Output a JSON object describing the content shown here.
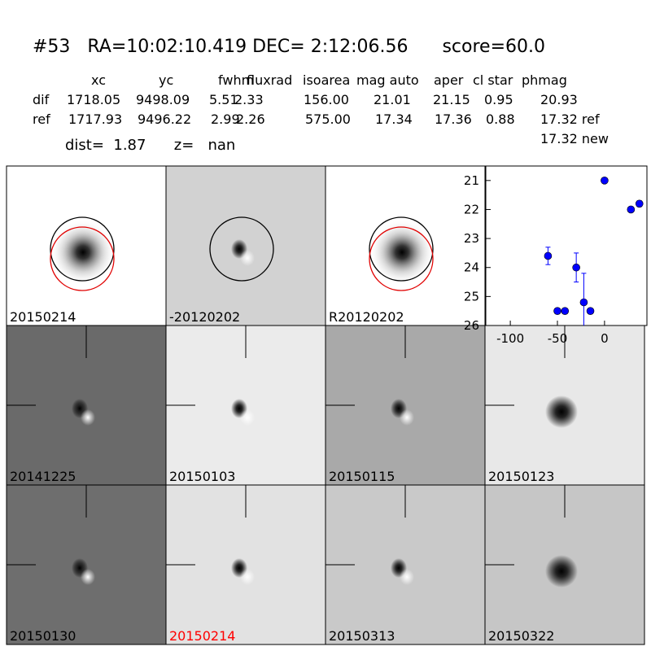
{
  "header": {
    "title": "#53   RA=10:02:10.419 DEC= 2:12:06.56      score=60.0",
    "dist": "dist=  1.87      z=   nan"
  },
  "table": {
    "columns": [
      "xc",
      "yc",
      "fwhm",
      "fluxrad",
      "isoarea",
      "mag auto",
      "aper",
      "cl star",
      "phmag"
    ],
    "rows": [
      [
        "dif",
        "1718.05",
        "9498.09",
        "5.51",
        "2.33",
        "156.00",
        "21.01",
        "21.15",
        "0.95",
        "20.93"
      ],
      [
        "ref",
        "1717.93",
        "9496.22",
        "2.99",
        "2.26",
        "575.00",
        "17.34",
        "17.36",
        "0.88",
        "17.32 ref"
      ]
    ],
    "extra": "17.32 new"
  },
  "panels": [
    {
      "label": "20150214"
    },
    {
      "label": "-20120202"
    },
    {
      "label": "R20120202"
    },
    {
      "label": "20141225"
    },
    {
      "label": "20150103"
    },
    {
      "label": "20150115"
    },
    {
      "label": "20150123"
    },
    {
      "label": "20150130"
    },
    {
      "label": "20150214",
      "color": "#ff0000"
    },
    {
      "label": "20150313"
    },
    {
      "label": "20150322"
    }
  ],
  "chart_data": {
    "type": "scatter",
    "color": "#0000ff",
    "x": [
      -60,
      -50,
      -42,
      -30,
      -22,
      -15,
      0,
      28,
      37
    ],
    "values": [
      23.6,
      25.5,
      25.5,
      24.0,
      25.2,
      25.5,
      21.0,
      22.0,
      21.8
    ],
    "errors": [
      0.3,
      0.05,
      0.05,
      0.5,
      1.0,
      0.05,
      0.05,
      0.05,
      0.1
    ],
    "xlim": [
      -126,
      45
    ],
    "ylim": [
      20.5,
      26
    ],
    "y_inverted": true,
    "xticks": [
      -100,
      -50,
      0
    ],
    "yticks": [
      21,
      22,
      23,
      24,
      25,
      26
    ]
  }
}
